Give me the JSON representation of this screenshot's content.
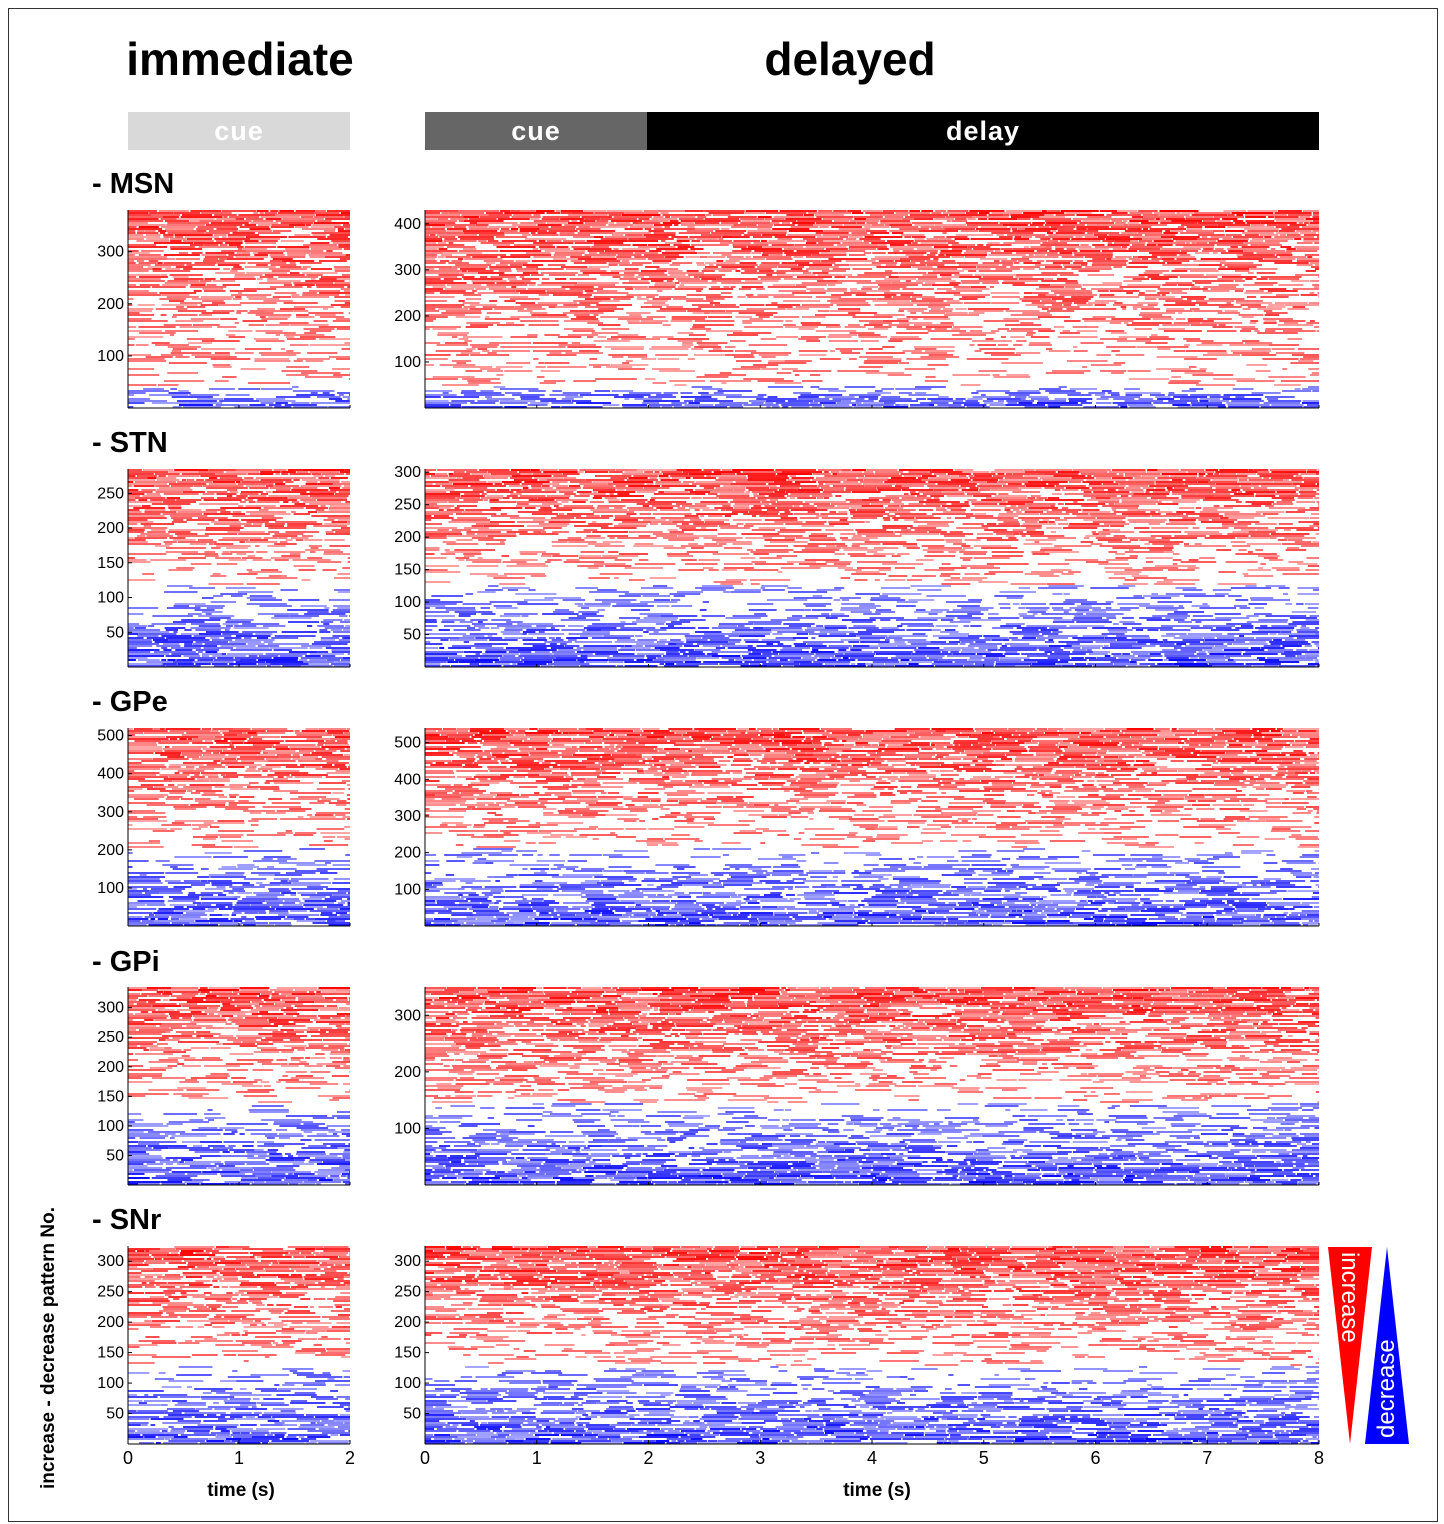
{
  "headers": {
    "immediate": "immediate",
    "delayed": "delayed"
  },
  "epochs": {
    "immediate_cue": "cue",
    "delayed_cue": "cue",
    "delayed_delay": "delay",
    "colors": {
      "immediate_cue": "#d9d9d9",
      "delayed_cue": "#666666",
      "delayed_delay": "#000000"
    }
  },
  "colors": {
    "increase": "#ff0000",
    "decrease": "#0000ff",
    "background": "#ffffff"
  },
  "legend": {
    "increase": "increase",
    "decrease": "decrease"
  },
  "chart_data": {
    "type": "heatmap",
    "ylabel": "increase - decrease pattern No.",
    "xlabel": "time (s)",
    "x_ticks": {
      "immediate": [
        0,
        1,
        2
      ],
      "delayed": [
        0,
        1,
        2,
        3,
        4,
        5,
        6,
        7,
        8
      ]
    },
    "x_range": {
      "immediate": [
        0,
        2
      ],
      "delayed": [
        0,
        8
      ]
    },
    "regions": [
      {
        "name": "- MSN",
        "immediate": {
          "n": 380,
          "yticks": [
            100,
            200,
            300
          ]
        },
        "delayed": {
          "n": 430,
          "yticks": [
            100,
            200,
            300,
            400
          ]
        },
        "decrease_fraction": 0.12
      },
      {
        "name": "- STN",
        "immediate": {
          "n": 285,
          "yticks": [
            50,
            100,
            150,
            200,
            250
          ]
        },
        "delayed": {
          "n": 305,
          "yticks": [
            50,
            100,
            150,
            200,
            250,
            300
          ]
        },
        "decrease_fraction": 0.42
      },
      {
        "name": "- GPe",
        "immediate": {
          "n": 520,
          "yticks": [
            100,
            200,
            300,
            400,
            500
          ]
        },
        "delayed": {
          "n": 540,
          "yticks": [
            100,
            200,
            300,
            400,
            500
          ]
        },
        "decrease_fraction": 0.4
      },
      {
        "name": "- GPi",
        "immediate": {
          "n": 335,
          "yticks": [
            50,
            100,
            150,
            200,
            250,
            300
          ]
        },
        "delayed": {
          "n": 350,
          "yticks": [
            100,
            200,
            300
          ]
        },
        "decrease_fraction": 0.42
      },
      {
        "name": "- SNr",
        "immediate": {
          "n": 325,
          "yticks": [
            50,
            100,
            150,
            200,
            250,
            300
          ]
        },
        "delayed": {
          "n": 325,
          "yticks": [
            50,
            100,
            150,
            200,
            250,
            300
          ]
        },
        "decrease_fraction": 0.4
      }
    ]
  }
}
